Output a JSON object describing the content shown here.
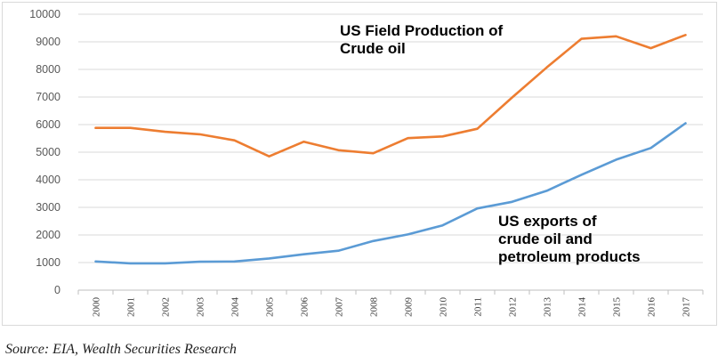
{
  "chart_data": {
    "type": "line",
    "x": [
      "2000",
      "2001",
      "2002",
      "2003",
      "2004",
      "2005",
      "2006",
      "2007",
      "2008",
      "2009",
      "2010",
      "2011",
      "2012",
      "2013",
      "2014",
      "2015",
      "2016",
      "2017"
    ],
    "ylim": [
      0,
      10000
    ],
    "yticks": [
      "0",
      "1000",
      "2000",
      "3000",
      "4000",
      "5000",
      "6000",
      "7000",
      "8000",
      "9000",
      "10000"
    ],
    "grid": true,
    "series": [
      {
        "name": "US Field Production of Crude oil",
        "color": "#ED7D31",
        "values": [
          5880,
          5880,
          5740,
          5650,
          5430,
          4850,
          5380,
          5070,
          4960,
          5510,
          5570,
          5850,
          6980,
          8070,
          9110,
          9200,
          8770,
          9250
        ]
      },
      {
        "name": "US exports of crude oil and petroleum products",
        "color": "#5B9BD5",
        "values": [
          1040,
          970,
          970,
          1030,
          1040,
          1150,
          1300,
          1430,
          1780,
          2020,
          2350,
          2960,
          3200,
          3600,
          4180,
          4730,
          5150,
          6050
        ]
      }
    ],
    "annotations": [
      {
        "lines": [
          "US Field Production of",
          "Crude oil"
        ]
      },
      {
        "lines": [
          "US exports of",
          "crude oil and",
          "petroleum products"
        ]
      }
    ]
  },
  "source": "Source: EIA, Wealth Securities Research"
}
